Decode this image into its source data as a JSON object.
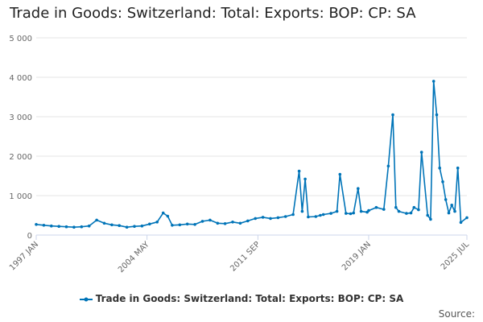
{
  "title": "Trade in Goods: Switzerland: Total: Exports: BOP: CP: SA",
  "source_label": "Source:",
  "colors": {
    "series": "#0074B8",
    "grid": "#e6e6e6",
    "axis": "#ccd6eb"
  },
  "chart_data": {
    "type": "line",
    "title": "Trade in Goods: Switzerland: Total: Exports: BOP: CP: SA",
    "xlabel": "",
    "ylabel": "",
    "ylim": [
      0,
      5000
    ],
    "y_ticks": [
      0,
      1000,
      2000,
      3000,
      4000,
      5000
    ],
    "y_tick_labels": [
      "0",
      "1 000",
      "2 000",
      "3 000",
      "4 000",
      "5 000"
    ],
    "x_tick_labels": [
      "1997 JAN",
      "2004 MAY",
      "2011 SEP",
      "2019 JAN",
      "2025 JUL"
    ],
    "x_tick_years": [
      1997.0,
      2004.33,
      2011.67,
      2019.0,
      2025.5
    ],
    "x_range": [
      1997.0,
      2025.5
    ],
    "legend": "Trade in Goods: Switzerland: Total: Exports: BOP: CP: SA",
    "series": [
      {
        "name": "Trade in Goods: Switzerland: Total: Exports: BOP: CP: SA",
        "x": [
          1997.0,
          1997.5,
          1998.0,
          1998.5,
          1999.0,
          1999.5,
          2000.0,
          2000.5,
          2001.0,
          2001.5,
          2002.0,
          2002.5,
          2003.0,
          2003.5,
          2004.0,
          2004.5,
          2005.0,
          2005.4,
          2005.7,
          2006.0,
          2006.5,
          2007.0,
          2007.5,
          2008.0,
          2008.5,
          2009.0,
          2009.5,
          2010.0,
          2010.5,
          2011.0,
          2011.5,
          2012.0,
          2012.5,
          2013.0,
          2013.5,
          2014.0,
          2014.4,
          2014.6,
          2014.8,
          2015.0,
          2015.5,
          2015.8,
          2016.0,
          2016.5,
          2016.9,
          2017.1,
          2017.5,
          2017.8,
          2018.0,
          2018.3,
          2018.5,
          2018.9,
          2019.0,
          2019.5,
          2020.0,
          2020.3,
          2020.6,
          2020.8,
          2021.0,
          2021.5,
          2021.8,
          2022.0,
          2022.3,
          2022.5,
          2022.9,
          2023.1,
          2023.3,
          2023.5,
          2023.7,
          2023.9,
          2024.1,
          2024.3,
          2024.5,
          2024.7,
          2024.9,
          2025.1,
          2025.5
        ],
        "values": [
          270,
          250,
          230,
          220,
          210,
          200,
          210,
          230,
          380,
          300,
          260,
          240,
          200,
          220,
          230,
          280,
          330,
          560,
          480,
          250,
          260,
          280,
          270,
          350,
          380,
          300,
          290,
          330,
          300,
          360,
          420,
          450,
          420,
          440,
          470,
          520,
          1620,
          600,
          1420,
          460,
          470,
          500,
          520,
          550,
          600,
          1540,
          550,
          540,
          560,
          1180,
          600,
          580,
          620,
          700,
          650,
          1750,
          3050,
          700,
          600,
          550,
          560,
          700,
          640,
          2100,
          500,
          400,
          3900,
          3050,
          1700,
          1350,
          900,
          560,
          760,
          600,
          1700,
          320,
          440
        ]
      }
    ]
  }
}
